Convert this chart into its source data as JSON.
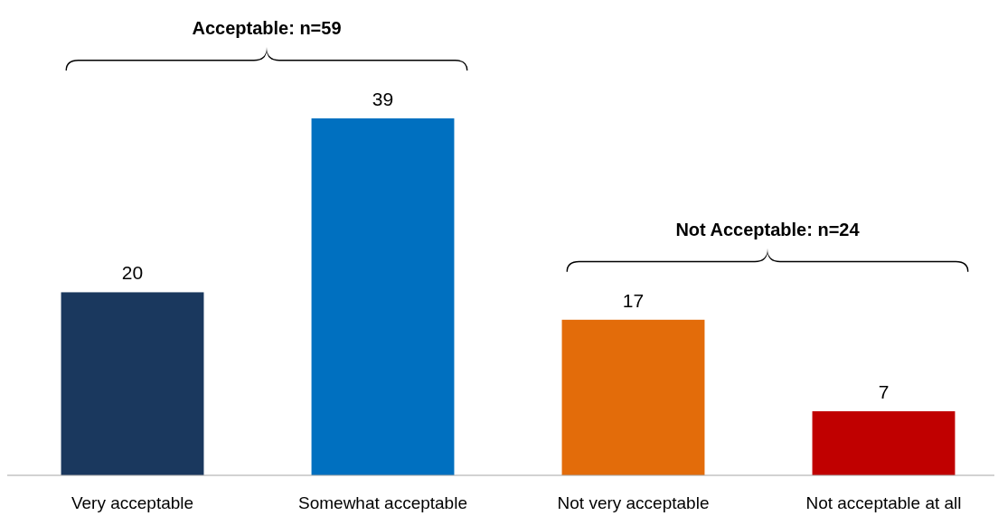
{
  "chart_data": {
    "type": "bar",
    "categories": [
      "Very acceptable",
      "Somewhat acceptable",
      "Not very acceptable",
      "Not acceptable at all"
    ],
    "values": [
      20,
      39,
      17,
      7
    ],
    "colors": [
      "#1a385e",
      "#0070c0",
      "#e36c0a",
      "#c00000"
    ],
    "data_labels": true,
    "annotations": [
      "Acceptable: n=59",
      "Not Acceptable: n=24"
    ]
  }
}
